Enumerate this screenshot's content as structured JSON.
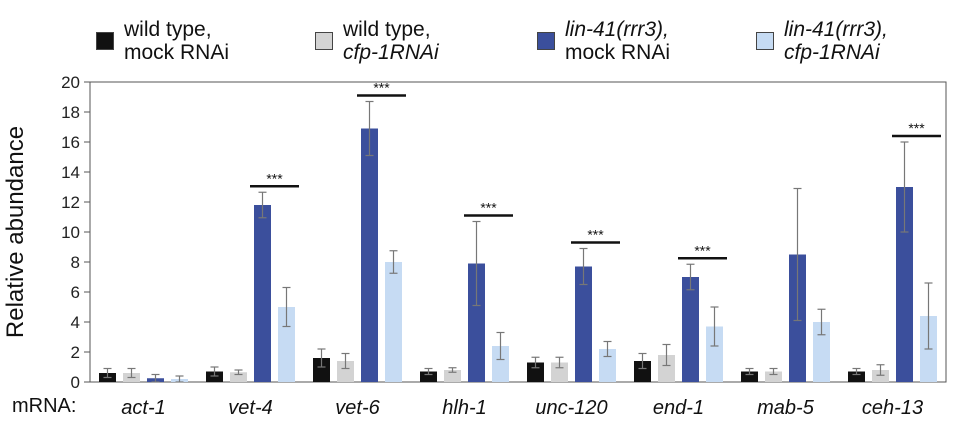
{
  "chart_data": {
    "type": "bar",
    "ylabel": "Relative abundance",
    "xaxis_prefix": "mRNA:",
    "ylim": [
      0,
      20
    ],
    "yticks": [
      0,
      2,
      4,
      6,
      8,
      10,
      12,
      14,
      16,
      18,
      20
    ],
    "categories": [
      "act-1",
      "vet-4",
      "vet-6",
      "hlh-1",
      "unc-120",
      "end-1",
      "mab-5",
      "ceh-13"
    ],
    "series": [
      {
        "name_parts": [
          "wild type,",
          "mock RNAi"
        ],
        "color": "#111111",
        "values": [
          0.6,
          0.7,
          1.6,
          0.7,
          1.3,
          1.4,
          0.7,
          0.7
        ],
        "errors": [
          0.3,
          0.3,
          0.6,
          0.2,
          0.35,
          0.5,
          0.2,
          0.2
        ]
      },
      {
        "name_parts": [
          "wild type,",
          "cfp-1RNAi"
        ],
        "color": "#d3d3d3",
        "values": [
          0.6,
          0.65,
          1.4,
          0.8,
          1.3,
          1.8,
          0.7,
          0.8
        ],
        "errors": [
          0.3,
          0.15,
          0.5,
          0.15,
          0.35,
          0.7,
          0.2,
          0.35
        ]
      },
      {
        "name_parts": [
          "lin-41(rrr3),",
          "mock RNAi"
        ],
        "color": "#3b4f9c",
        "values": [
          0.25,
          11.8,
          16.9,
          7.9,
          7.7,
          7.0,
          8.5,
          13.0
        ],
        "errors": [
          0.25,
          0.85,
          1.8,
          2.8,
          1.2,
          0.85,
          4.4,
          3.0
        ]
      },
      {
        "name_parts": [
          "lin-41(rrr3),",
          "cfp-1RNAi"
        ],
        "color": "#c6dbf3",
        "values": [
          0.2,
          5.0,
          8.0,
          2.4,
          2.2,
          3.7,
          4.0,
          4.4
        ],
        "errors": [
          0.2,
          1.3,
          0.75,
          0.9,
          0.5,
          1.3,
          0.85,
          2.2
        ]
      }
    ],
    "significance": [
      {
        "category": "vet-4",
        "label": "***"
      },
      {
        "category": "vet-6",
        "label": "***"
      },
      {
        "category": "hlh-1",
        "label": "***"
      },
      {
        "category": "unc-120",
        "label": "***"
      },
      {
        "category": "end-1",
        "label": "***"
      },
      {
        "category": "ceh-13",
        "label": "***"
      }
    ],
    "legend_position": "top",
    "grid": false
  }
}
